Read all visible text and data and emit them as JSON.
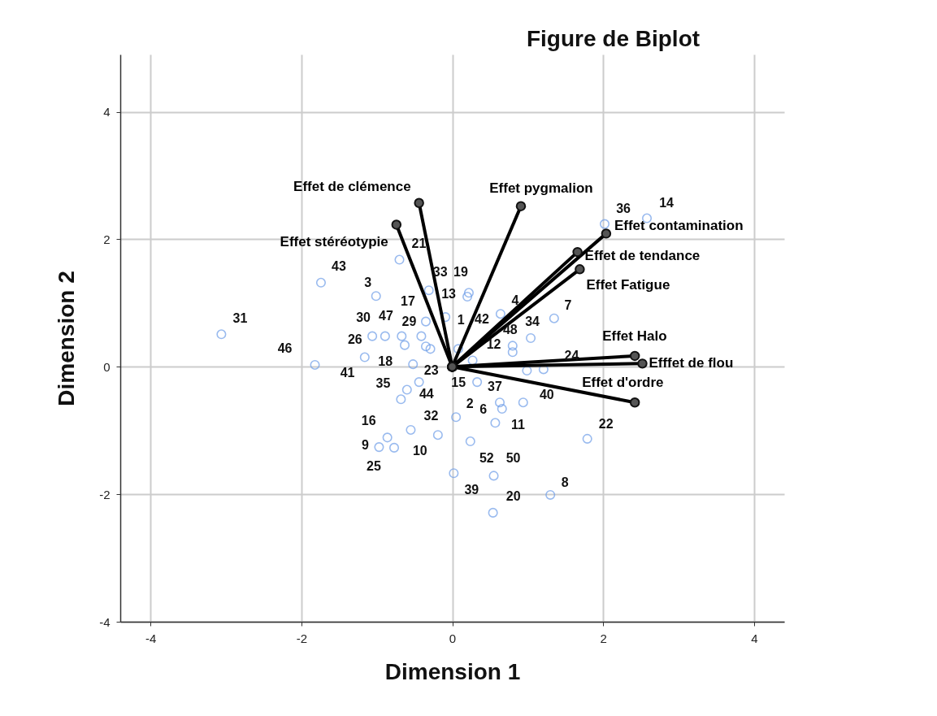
{
  "chart_data": {
    "type": "scatter",
    "title": "Figure de Biplot",
    "xlabel": "Dimension 1",
    "ylabel": "Dimension 2",
    "xlim": [
      -4.4,
      4.4
    ],
    "ylim": [
      -4,
      4.9
    ],
    "xticks": [
      -4,
      -2,
      0,
      2,
      4
    ],
    "yticks": [
      -4,
      -2,
      0,
      2,
      4
    ],
    "grid": true,
    "series": [
      {
        "type": "scatter",
        "color": "#6f9ee8",
        "marker": "circle",
        "x": [
          -3.06,
          -1.82,
          -1.74,
          -1.01,
          -0.7,
          -1.06,
          -0.89,
          -1.16,
          -0.67,
          -0.63,
          -0.35,
          -0.41,
          -0.35,
          -0.29,
          -0.52,
          -0.31,
          -0.09,
          0.22,
          0.2,
          0.64,
          0.8,
          0.8,
          1.04,
          1.35,
          0.08,
          0.27,
          0.99,
          1.21,
          0.33,
          -0.6,
          -0.68,
          -0.44,
          0.63,
          0.66,
          0.94,
          0.05,
          0.57,
          -0.55,
          -0.19,
          -0.86,
          -0.97,
          -0.77,
          0.24,
          0.02,
          0.55,
          1.3,
          0.54,
          1.79,
          2.02,
          2.58
        ],
        "values": [
          0.51,
          0.03,
          1.32,
          1.11,
          1.68,
          0.48,
          0.48,
          0.15,
          0.48,
          0.34,
          0.71,
          0.48,
          0.32,
          0.28,
          0.04,
          1.2,
          0.78,
          1.16,
          1.1,
          0.83,
          0.33,
          0.23,
          0.45,
          0.76,
          0.28,
          0.1,
          -0.06,
          -0.04,
          -0.24,
          -0.36,
          -0.51,
          -0.24,
          -0.56,
          -0.66,
          -0.56,
          -0.79,
          -0.88,
          -0.99,
          -1.07,
          -1.11,
          -1.26,
          -1.27,
          -1.17,
          -1.67,
          -1.71,
          -2.01,
          -2.29,
          -1.13,
          2.24,
          2.33
        ]
      },
      {
        "type": "line",
        "name": "Effet de clémence",
        "color": "#000000",
        "marker": "circle",
        "x": [
          0,
          -0.44
        ],
        "values": [
          0,
          2.57
        ]
      },
      {
        "type": "line",
        "name": "Effet stéréotypie",
        "color": "#000000",
        "marker": "circle",
        "x": [
          0,
          -0.74
        ],
        "values": [
          0,
          2.23
        ]
      },
      {
        "type": "line",
        "name": "Effet pygmalion",
        "color": "#000000",
        "marker": "circle",
        "x": [
          0,
          0.91
        ],
        "values": [
          0,
          2.52
        ]
      },
      {
        "type": "line",
        "name": "Effet contamination",
        "color": "#000000",
        "marker": "circle",
        "x": [
          0,
          2.04
        ],
        "values": [
          0,
          2.09
        ]
      },
      {
        "type": "line",
        "name": "Effet de tendance",
        "color": "#000000",
        "marker": "circle",
        "x": [
          0,
          1.66
        ],
        "values": [
          0,
          1.8
        ]
      },
      {
        "type": "line",
        "name": "Effet Fatigue",
        "color": "#000000",
        "marker": "circle",
        "x": [
          0,
          1.69
        ],
        "values": [
          0,
          1.53
        ]
      },
      {
        "type": "line",
        "name": "Effet Halo",
        "color": "#000000",
        "marker": "circle",
        "x": [
          0,
          2.42
        ],
        "values": [
          0,
          0.17
        ]
      },
      {
        "type": "line",
        "name": "Efffet de flou",
        "color": "#000000",
        "marker": "circle",
        "x": [
          0,
          2.52
        ],
        "values": [
          0,
          0.05
        ]
      },
      {
        "type": "line",
        "name": "Effet d'ordre",
        "color": "#000000",
        "marker": "circle",
        "x": [
          0,
          2.42
        ],
        "values": [
          0,
          -0.56
        ]
      }
    ],
    "annotations": [
      {
        "text": "31",
        "x": -3.06,
        "y": 0.51
      },
      {
        "text": "46",
        "x": -1.82,
        "y": 0.03
      },
      {
        "text": "43",
        "x": -1.74,
        "y": 1.32
      },
      {
        "text": "3",
        "x": -1.01,
        "y": 1.11
      },
      {
        "text": "17",
        "x": -0.35,
        "y": 0.71
      },
      {
        "text": "30",
        "x": -1.06,
        "y": 0.48
      },
      {
        "text": "47",
        "x": -0.89,
        "y": 0.48
      },
      {
        "text": "29",
        "x": -0.41,
        "y": 0.48
      },
      {
        "text": "26",
        "x": -1.16,
        "y": 0.15
      },
      {
        "text": "18",
        "x": -0.52,
        "y": 0.04
      },
      {
        "text": "41",
        "x": -1.82,
        "y": 0.03
      },
      {
        "text": "23",
        "x": -0.44,
        "y": -0.24
      },
      {
        "text": "35",
        "x": -0.68,
        "y": -0.51
      },
      {
        "text": "44",
        "x": -0.6,
        "y": -0.36
      },
      {
        "text": "15",
        "x": 0.33,
        "y": -0.24
      },
      {
        "text": "37",
        "x": 0.63,
        "y": -0.56
      },
      {
        "text": "40",
        "x": 1.21,
        "y": -0.04
      },
      {
        "text": "24",
        "x": 0.99,
        "y": -0.06
      },
      {
        "text": "2",
        "x": 0.05,
        "y": -0.79
      },
      {
        "text": "6",
        "x": 0.66,
        "y": -0.66
      },
      {
        "text": "11",
        "x": 0.57,
        "y": -0.88
      },
      {
        "text": "32",
        "x": -0.55,
        "y": -0.99
      },
      {
        "text": "16",
        "x": -0.86,
        "y": -1.11
      },
      {
        "text": "9",
        "x": -0.97,
        "y": -1.26
      },
      {
        "text": "10",
        "x": -0.19,
        "y": -1.07
      },
      {
        "text": "25",
        "x": -0.77,
        "y": -1.27
      },
      {
        "text": "52",
        "x": 0.24,
        "y": -1.17
      },
      {
        "text": "50",
        "x": 0.55,
        "y": -1.71
      },
      {
        "text": "39",
        "x": 0.02,
        "y": -1.67
      },
      {
        "text": "20",
        "x": 0.54,
        "y": -2.29
      },
      {
        "text": "8",
        "x": 1.3,
        "y": -2.01
      },
      {
        "text": "22",
        "x": 1.79,
        "y": -1.13
      },
      {
        "text": "36",
        "x": 2.02,
        "y": 2.24
      },
      {
        "text": "14",
        "x": 2.58,
        "y": 2.33
      },
      {
        "text": "21",
        "x": -0.7,
        "y": 1.68
      },
      {
        "text": "33",
        "x": -0.31,
        "y": 1.2
      },
      {
        "text": "19",
        "x": 0.22,
        "y": 1.16
      },
      {
        "text": "13",
        "x": 0.2,
        "y": 1.1
      },
      {
        "text": "4",
        "x": 0.64,
        "y": 0.83
      },
      {
        "text": "7",
        "x": 1.35,
        "y": 0.76
      },
      {
        "text": "34",
        "x": 1.04,
        "y": 0.45
      },
      {
        "text": "1",
        "x": -0.09,
        "y": 0.78
      },
      {
        "text": "42",
        "x": 0.08,
        "y": 0.28
      },
      {
        "text": "12",
        "x": 0.27,
        "y": 0.1
      },
      {
        "text": "48",
        "x": 0.8,
        "y": 0.23
      }
    ]
  }
}
